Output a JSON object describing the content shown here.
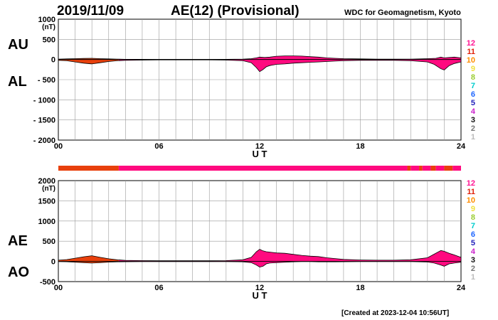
{
  "header": {
    "date": "2019/11/09",
    "title": "AE(12) (Provisional)",
    "source": "WDC for Geomagnetism, Kyoto"
  },
  "footer": {
    "created": "[Created at 2023-12-04 10:56UT]"
  },
  "colors": {
    "fill_main": "#ff0a7f",
    "fill_alt": "#e8400c",
    "grid": "#9a9a9a",
    "line": "#000000"
  },
  "legend": {
    "items": [
      {
        "label": "12",
        "color": "#ff1493"
      },
      {
        "label": "11",
        "color": "#e0200a"
      },
      {
        "label": "10",
        "color": "#ff8c00"
      },
      {
        "label": "9",
        "color": "#f0e040"
      },
      {
        "label": "8",
        "color": "#9acd32"
      },
      {
        "label": "7",
        "color": "#00cccc"
      },
      {
        "label": "6",
        "color": "#1e66ff"
      },
      {
        "label": "5",
        "color": "#2222bb"
      },
      {
        "label": "4",
        "color": "#cc22cc"
      },
      {
        "label": "3",
        "color": "#111111"
      },
      {
        "label": "2",
        "color": "#777777"
      },
      {
        "label": "1",
        "color": "#bbbbbb"
      }
    ]
  },
  "chart_data": [
    {
      "type": "area",
      "title": "AU / AL",
      "labels": {
        "upper": "AU",
        "lower": "AL"
      },
      "unit": "(nT)",
      "xlabel": "U T",
      "xlim": [
        0,
        24
      ],
      "ylim": [
        -2000,
        1000
      ],
      "x_ticks": [
        "00",
        "06",
        "12",
        "18",
        "24"
      ],
      "y_ticks": [
        "1000",
        "500",
        "0",
        "- 500",
        "- 1000",
        "- 1500",
        "- 2000"
      ],
      "grid": true,
      "series": [
        {
          "name": "AU",
          "x": [
            0,
            0.5,
            1,
            1.5,
            2,
            2.5,
            3,
            3.5,
            4,
            5,
            6,
            7,
            8,
            9,
            10,
            11,
            11.5,
            11.8,
            12,
            12.3,
            12.6,
            13,
            13.5,
            14,
            14.5,
            15,
            15.5,
            16,
            16.5,
            17,
            18,
            19,
            20,
            21,
            22,
            22.5,
            22.8,
            23,
            23.3,
            23.6,
            24
          ],
          "y": [
            10,
            15,
            20,
            25,
            30,
            20,
            15,
            10,
            5,
            5,
            5,
            5,
            5,
            5,
            5,
            10,
            20,
            40,
            60,
            50,
            60,
            80,
            90,
            90,
            85,
            70,
            60,
            40,
            30,
            20,
            15,
            10,
            10,
            10,
            20,
            30,
            60,
            40,
            50,
            60,
            40
          ]
        },
        {
          "name": "AL",
          "x": [
            0,
            0.5,
            1,
            1.5,
            2,
            2.5,
            3,
            3.5,
            4,
            5,
            6,
            7,
            8,
            9,
            10,
            11,
            11.5,
            11.8,
            12,
            12.2,
            12.4,
            12.6,
            13,
            13.5,
            14,
            14.5,
            15,
            15.5,
            16,
            16.5,
            17,
            18,
            19,
            20,
            21,
            22,
            22.4,
            22.8,
            23,
            23.3,
            23.6,
            24
          ],
          "y": [
            -20,
            -30,
            -60,
            -90,
            -110,
            -80,
            -50,
            -30,
            -20,
            -15,
            -10,
            -10,
            -10,
            -10,
            -15,
            -30,
            -80,
            -200,
            -300,
            -250,
            -180,
            -150,
            -120,
            -110,
            -90,
            -80,
            -70,
            -60,
            -50,
            -40,
            -30,
            -20,
            -20,
            -20,
            -30,
            -60,
            -120,
            -230,
            -260,
            -150,
            -100,
            -60
          ]
        }
      ]
    },
    {
      "type": "area",
      "title": "AE / AO",
      "labels": {
        "upper": "AE",
        "lower": "AO"
      },
      "unit": "(nT)",
      "xlabel": "U T",
      "xlim": [
        0,
        24
      ],
      "ylim": [
        -500,
        2000
      ],
      "x_ticks": [
        "00",
        "06",
        "12",
        "18",
        "24"
      ],
      "y_ticks": [
        "2000",
        "1500",
        "1000",
        "500",
        "0",
        "-500"
      ],
      "grid": true,
      "series": [
        {
          "name": "AE",
          "x": [
            0,
            0.5,
            1,
            1.5,
            2,
            2.5,
            3,
            3.5,
            4,
            5,
            6,
            7,
            8,
            9,
            10,
            11,
            11.5,
            11.8,
            12,
            12.2,
            12.4,
            12.6,
            13,
            13.5,
            14,
            14.5,
            15,
            15.5,
            16,
            16.5,
            17,
            18,
            19,
            20,
            21,
            22,
            22.4,
            22.8,
            23,
            23.3,
            23.6,
            24
          ],
          "y": [
            30,
            45,
            80,
            115,
            140,
            100,
            65,
            40,
            25,
            20,
            15,
            15,
            15,
            15,
            20,
            40,
            100,
            240,
            300,
            260,
            240,
            230,
            210,
            200,
            175,
            150,
            130,
            120,
            90,
            70,
            50,
            35,
            30,
            30,
            40,
            90,
            180,
            270,
            250,
            200,
            160,
            100
          ]
        },
        {
          "name": "AO",
          "x": [
            0,
            0.5,
            1,
            1.5,
            2,
            2.5,
            3,
            3.5,
            4,
            5,
            6,
            7,
            8,
            9,
            10,
            11,
            11.5,
            11.8,
            12,
            12.2,
            12.4,
            12.6,
            13,
            13.5,
            14,
            14.5,
            15,
            15.5,
            16,
            16.5,
            17,
            18,
            19,
            20,
            21,
            22,
            22.4,
            22.8,
            23,
            23.3,
            23.6,
            24
          ],
          "y": [
            -5,
            -8,
            -20,
            -30,
            -40,
            -30,
            -18,
            -10,
            -8,
            -5,
            -3,
            -3,
            -3,
            -3,
            -5,
            -10,
            -30,
            -90,
            -140,
            -120,
            -60,
            -40,
            -30,
            -20,
            -10,
            -5,
            -5,
            -10,
            -10,
            -10,
            -8,
            -5,
            -5,
            -5,
            -5,
            -15,
            -40,
            -90,
            -120,
            -60,
            -40,
            -20
          ]
        }
      ]
    }
  ],
  "station_bar": {
    "segments": [
      {
        "from": 0,
        "to": 3.6,
        "count": "11"
      },
      {
        "from": 3.6,
        "to": 20.8,
        "count": "12"
      },
      {
        "from": 20.8,
        "to": 21.0,
        "count": "11"
      },
      {
        "from": 21.0,
        "to": 21.5,
        "count": "12"
      },
      {
        "from": 21.5,
        "to": 21.7,
        "count": "11"
      },
      {
        "from": 21.7,
        "to": 22.2,
        "count": "12"
      },
      {
        "from": 22.2,
        "to": 22.5,
        "count": "11"
      },
      {
        "from": 22.5,
        "to": 23.0,
        "count": "12"
      },
      {
        "from": 23.0,
        "to": 23.5,
        "count": "11"
      },
      {
        "from": 23.5,
        "to": 24,
        "count": "12"
      }
    ]
  }
}
